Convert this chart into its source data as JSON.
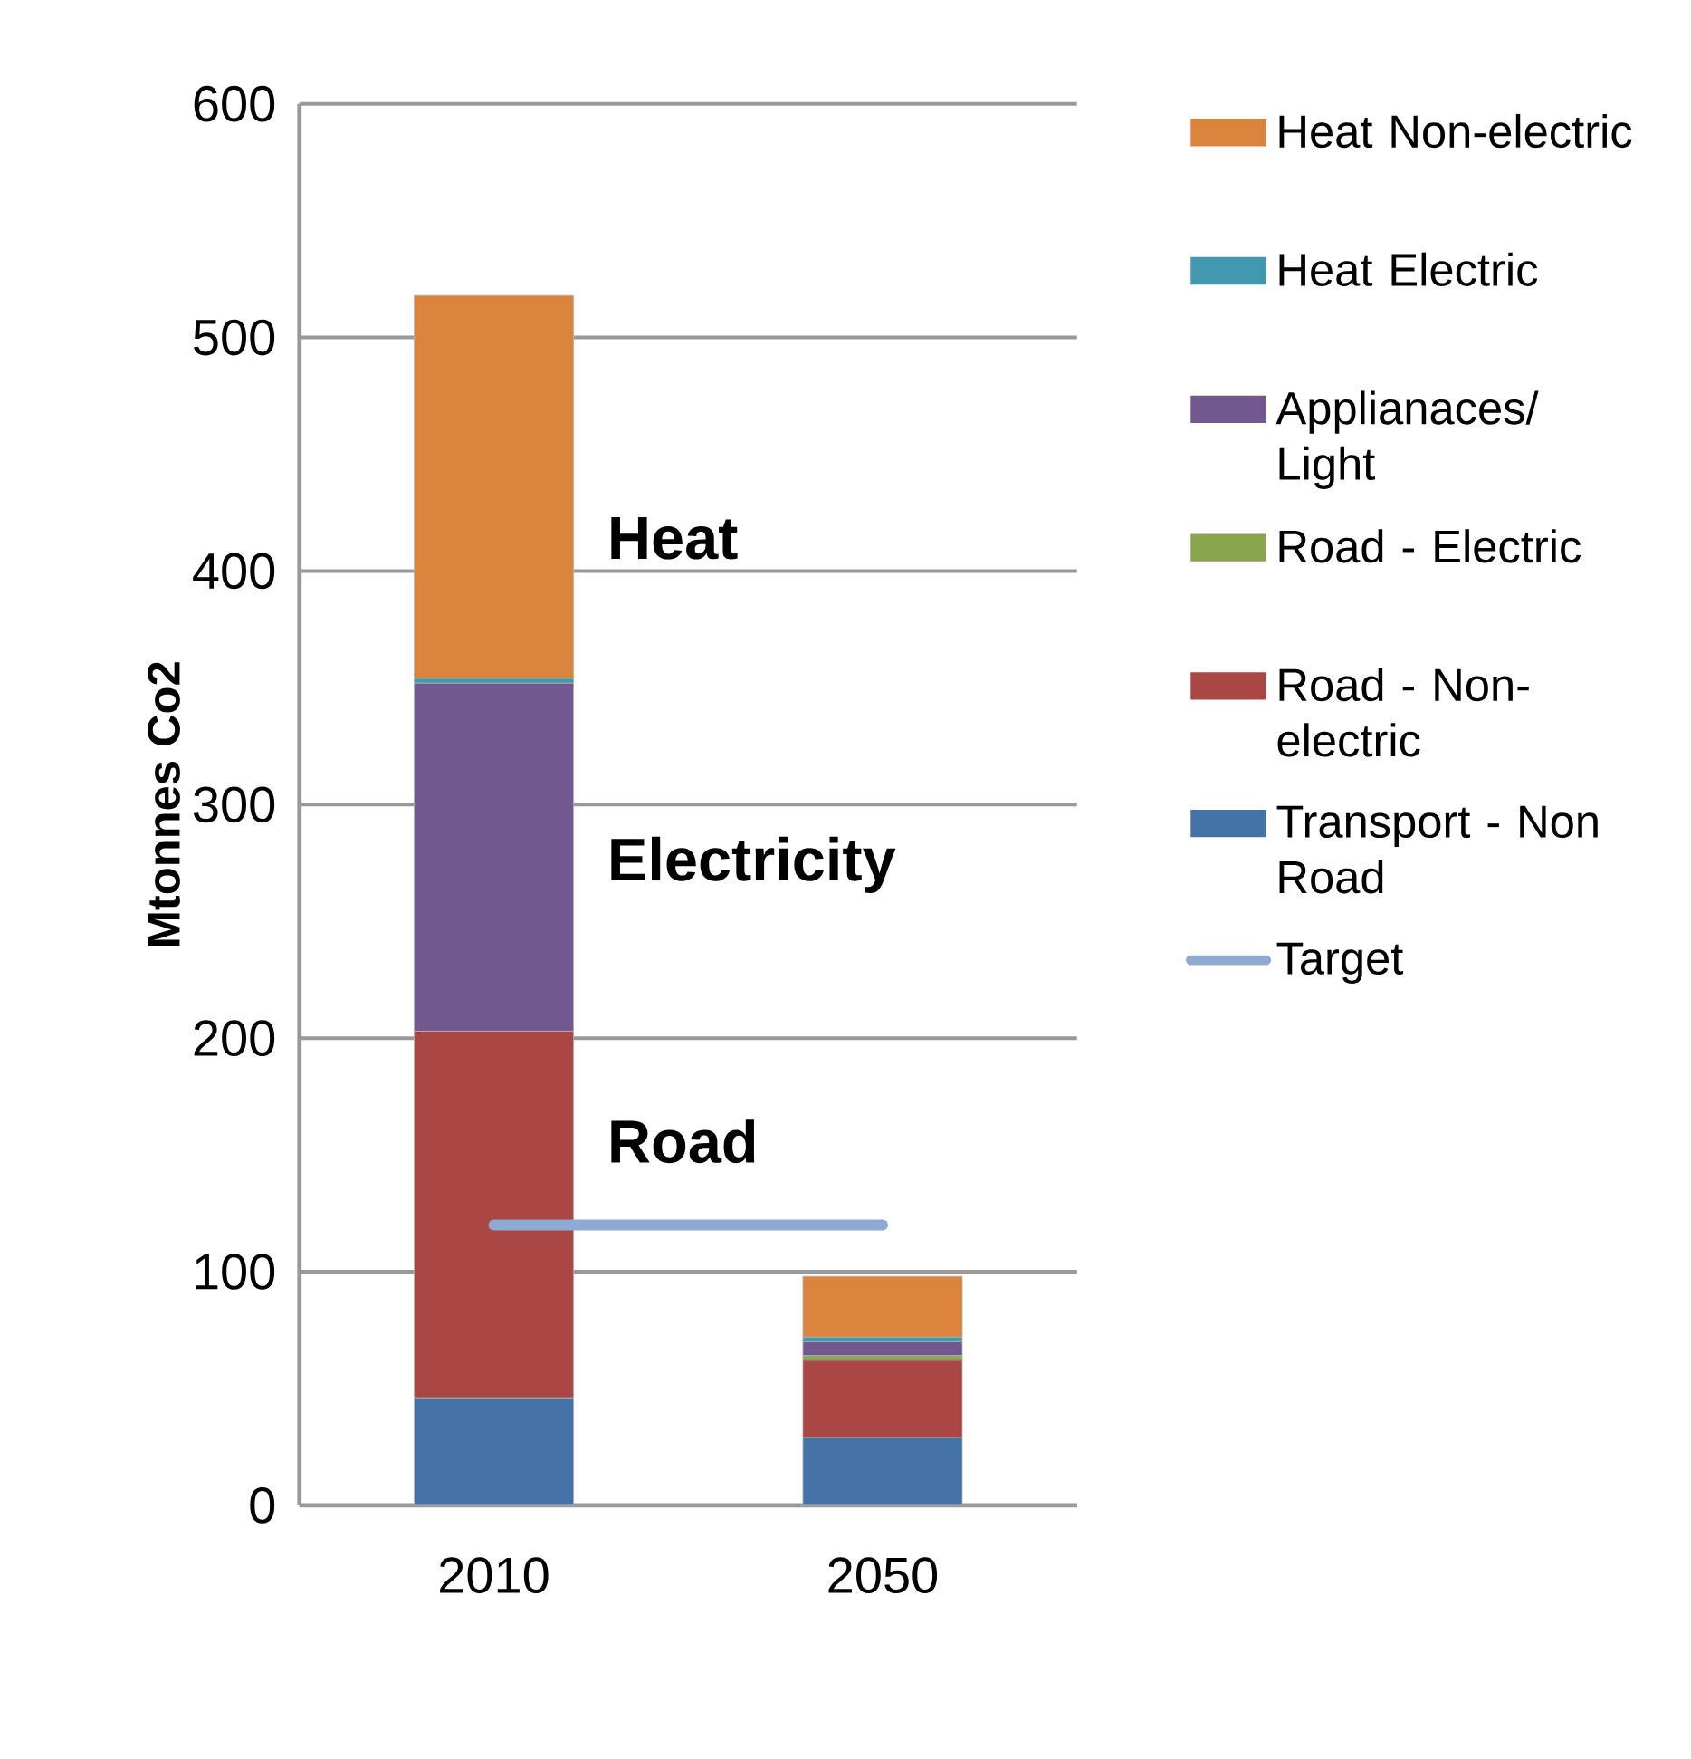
{
  "chart_data": {
    "type": "bar",
    "stacked": true,
    "ylabel": "Mtonnes Co2",
    "categories": [
      "2010",
      "2050"
    ],
    "series": [
      {
        "name": "Transport - Non Road",
        "color": "#4572a7",
        "values": [
          46,
          29
        ]
      },
      {
        "name": "Road - Non-electric",
        "color": "#aa4643",
        "values": [
          157,
          33
        ]
      },
      {
        "name": "Road - Electric",
        "color": "#89a54e",
        "values": [
          0,
          2
        ]
      },
      {
        "name": "Applianaces/ Light",
        "color": "#71588f",
        "values": [
          149,
          6
        ]
      },
      {
        "name": "Heat Electric",
        "color": "#4198af",
        "values": [
          2,
          2
        ]
      },
      {
        "name": "Heat Non-electric",
        "color": "#db843d",
        "values": [
          164,
          26
        ]
      },
      {
        "name": "Target",
        "type": "line",
        "color": "#8faad2",
        "values": [
          120,
          120
        ]
      }
    ],
    "ylim": [
      0,
      600
    ],
    "yticks": [
      0,
      100,
      200,
      300,
      400,
      500,
      600
    ],
    "grid": "y",
    "legend": "right",
    "annotations": [
      "Heat",
      "Electricity",
      "Road"
    ]
  }
}
